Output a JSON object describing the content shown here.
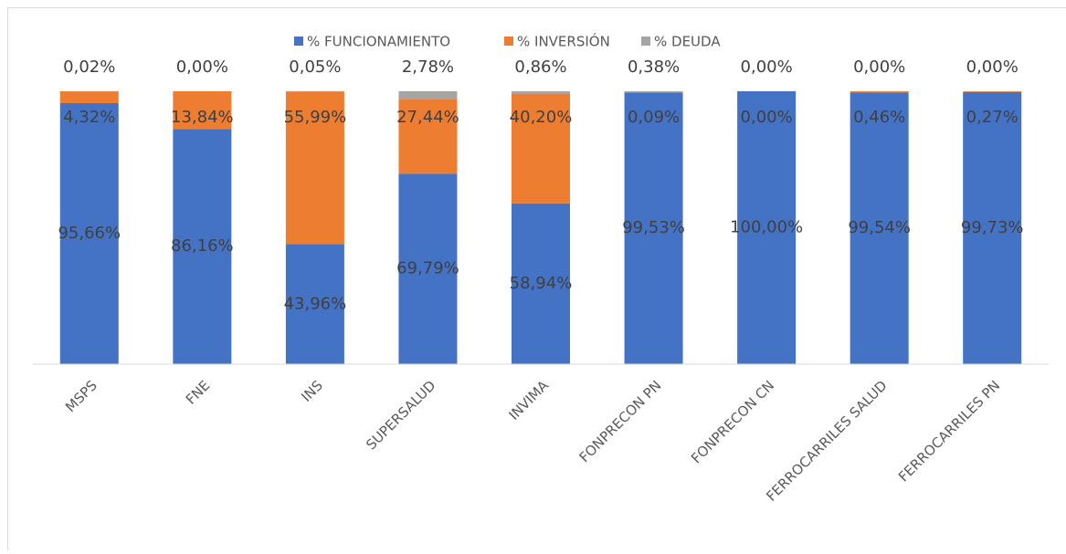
{
  "chart_data": {
    "type": "stacked_bar",
    "categories": [
      "MSPS",
      "FNE",
      "INS",
      "SUPERSALUD",
      "INVIMA",
      "FONPRECON PN",
      "FONPRECON CN",
      "FERROCARRILES SALUD",
      "FERROCARRILES PN"
    ],
    "ylim": [
      0,
      100
    ],
    "series": [
      {
        "name": "% FUNCIONAMIENTO",
        "color": "#4472c4",
        "values": [
          95.66,
          86.16,
          43.96,
          69.79,
          58.94,
          99.53,
          100.0,
          99.54,
          99.73
        ],
        "value_labels": [
          "95,66%",
          "86,16%",
          "43,96%",
          "69,79%",
          "58,94%",
          "99,53%",
          "100,00%",
          "99,54%",
          "99,73%"
        ]
      },
      {
        "name": "% INVERSIÓN",
        "color": "#ed7d31",
        "values": [
          4.32,
          13.84,
          55.99,
          27.44,
          40.2,
          0.09,
          0.0,
          0.46,
          0.27
        ],
        "value_labels": [
          "4,32%",
          "13,84%",
          "55,99%",
          "27,44%",
          "40,20%",
          "0,09%",
          "0,00%",
          "0,46%",
          "0,27%"
        ]
      },
      {
        "name": "% DEUDA",
        "color": "#a5a5a5",
        "values": [
          0.02,
          0.0,
          0.05,
          2.78,
          0.86,
          0.38,
          0.0,
          0.0,
          0.0
        ],
        "value_labels": [
          "0,02%",
          "0,00%",
          "0,05%",
          "2,78%",
          "0,86%",
          "0,38%",
          "0,00%",
          "0,00%",
          "0,00%"
        ]
      }
    ]
  }
}
